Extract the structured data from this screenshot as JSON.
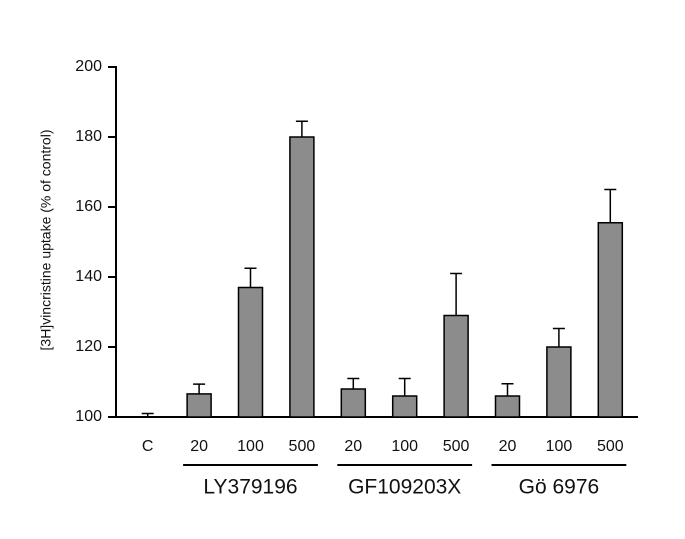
{
  "chart_data": {
    "type": "bar",
    "y_label": "[3H]vincristine uptake (% of control)",
    "categories": [
      "C",
      "20",
      "100",
      "500",
      "20",
      "100",
      "500",
      "20",
      "100",
      "500"
    ],
    "category_groups": [
      null,
      "LY379196",
      "LY379196",
      "LY379196",
      "GF109203X",
      "GF109203X",
      "GF109203X",
      "Gö 6976",
      "Gö 6976",
      "Gö 6976"
    ],
    "values": [
      100,
      106.6,
      137,
      180,
      108,
      106,
      129,
      106,
      120,
      155.5
    ],
    "errors": [
      1,
      2.8,
      5.5,
      4.5,
      3,
      5,
      12,
      3.5,
      5.3,
      9.5
    ],
    "color": "#8c8c8c",
    "ylim": [
      100,
      200
    ],
    "yticks": [
      100,
      120,
      140,
      160,
      180,
      200
    ]
  }
}
